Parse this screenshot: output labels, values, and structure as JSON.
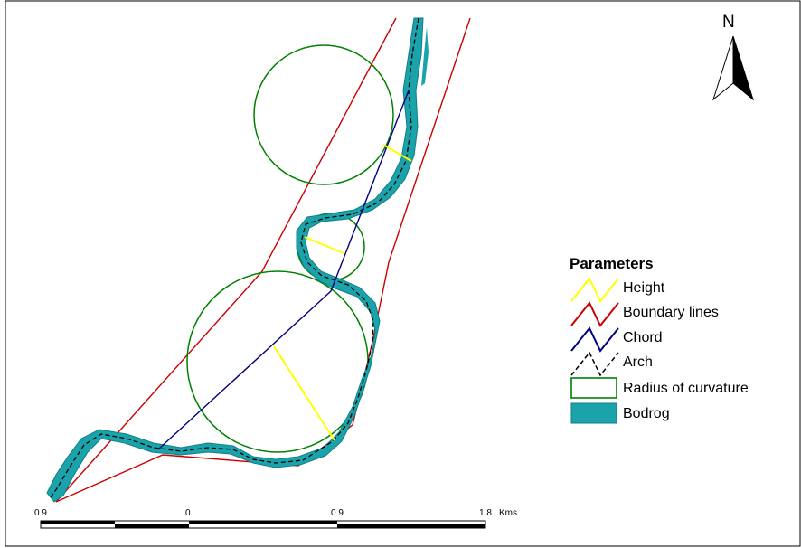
{
  "north_arrow": {
    "label": "N",
    "icon": "north-arrow-icon"
  },
  "legend": {
    "title": "Parameters",
    "items": [
      {
        "label": "Height",
        "color": "#ffff00",
        "icon": "zigzag-line-icon"
      },
      {
        "label": "Boundary lines",
        "color": "#cc0000",
        "icon": "zigzag-line-icon"
      },
      {
        "label": "Chord",
        "color": "#000080",
        "icon": "zigzag-line-icon"
      },
      {
        "label": "Arch",
        "color": "#000000",
        "icon": "dashed-zigzag-line-icon"
      },
      {
        "label": "Radius of curvature",
        "color": "#008000",
        "icon": "outlined-rectangle-icon"
      },
      {
        "label": "Bodrog",
        "color": "#1aa3aa",
        "icon": "filled-rectangle-icon"
      }
    ]
  },
  "scale_bar": {
    "labels": [
      "0.9",
      "0",
      "0.9",
      "1.8"
    ],
    "unit": "Kms"
  },
  "colors": {
    "river_fill": "#1aa3aa",
    "boundary": "#cc0000",
    "chord": "#000080",
    "height": "#ffff00",
    "radius": "#008000"
  }
}
